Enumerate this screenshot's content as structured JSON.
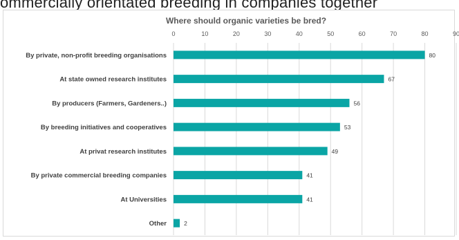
{
  "page": {
    "top_text": "ommercially orientated breeding in companies together"
  },
  "chart_data": {
    "type": "bar",
    "orientation": "horizontal",
    "title": "Where should organic varieties be bred?",
    "xlabel": "",
    "ylabel": "",
    "xlim": [
      0,
      90
    ],
    "xticks": [
      0,
      10,
      20,
      30,
      40,
      50,
      60,
      70,
      80,
      90
    ],
    "grid": true,
    "legend": "none",
    "bar_color": "#0aa5a5",
    "categories": [
      "By private, non-profit breeding organisations",
      "At state owned research institutes",
      "By producers (Farmers, Gardeners..)",
      "By breeding initiatives and cooperatives",
      "At privat research institutes",
      "By private commercial breeding companies",
      "At Universities",
      "Other"
    ],
    "values": [
      80,
      67,
      56,
      53,
      49,
      41,
      41,
      2
    ]
  }
}
